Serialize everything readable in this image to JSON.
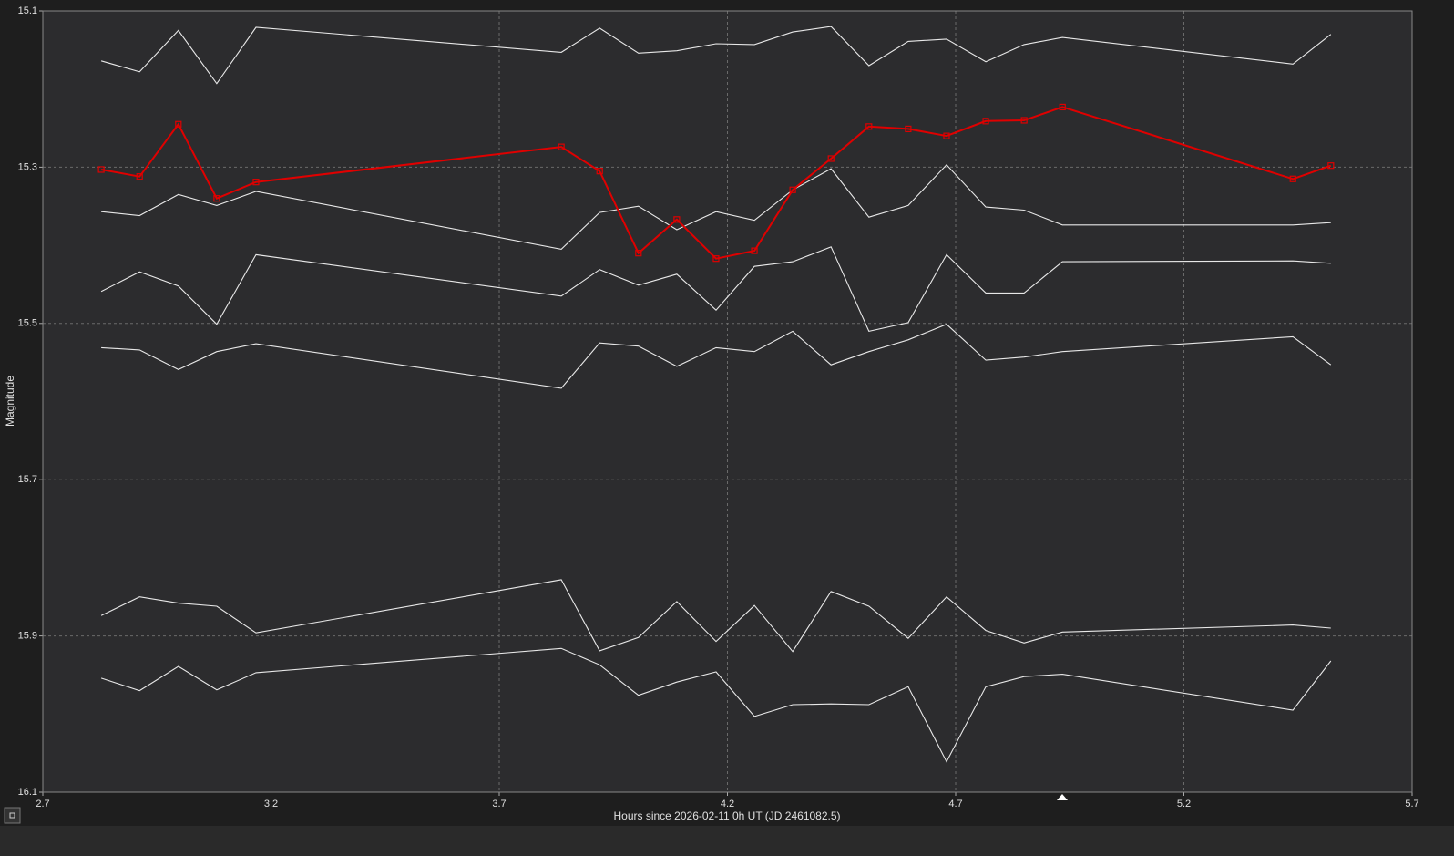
{
  "chart_data": {
    "type": "line",
    "xlabel": "Hours since 2026-02-11 0h UT (JD 2461082.5)",
    "ylabel": "Magnitude",
    "x": [
      2.828,
      2.912,
      2.997,
      3.081,
      3.167,
      3.836,
      3.92,
      4.005,
      4.089,
      4.175,
      4.259,
      4.343,
      4.427,
      4.51,
      4.596,
      4.68,
      4.766,
      4.85,
      4.934,
      5.439,
      5.522
    ],
    "xlim": [
      2.7,
      5.7
    ],
    "xticks": [
      2.7,
      3.2,
      3.7,
      4.2,
      4.7,
      5.2,
      5.7
    ],
    "ylim": [
      15.1,
      16.1
    ],
    "yticks": [
      15.1,
      15.3,
      15.5,
      15.7,
      15.9,
      16.1
    ],
    "y_inverted": true,
    "grid": true,
    "series": [
      {
        "color": "#e8e8e8",
        "values": [
          15.164,
          15.178,
          15.125,
          15.193,
          15.121,
          15.153,
          15.122,
          15.154,
          15.151,
          15.142,
          15.143,
          15.127,
          15.12,
          15.17,
          15.139,
          15.136,
          15.165,
          15.143,
          15.134,
          15.168,
          15.13
        ]
      },
      {
        "color": "#e8e8e8",
        "values": [
          15.357,
          15.362,
          15.335,
          15.349,
          15.331,
          15.405,
          15.358,
          15.35,
          15.38,
          15.357,
          15.368,
          15.329,
          15.302,
          15.364,
          15.349,
          15.297,
          15.351,
          15.355,
          15.374,
          15.374,
          15.371
        ]
      },
      {
        "color": "#e8e8e8",
        "values": [
          15.459,
          15.434,
          15.452,
          15.501,
          15.412,
          15.465,
          15.431,
          15.451,
          15.437,
          15.483,
          15.427,
          15.421,
          15.402,
          15.51,
          15.499,
          15.412,
          15.461,
          15.461,
          15.421,
          15.42,
          15.423
        ]
      },
      {
        "color": "#e8e8e8",
        "values": [
          15.531,
          15.534,
          15.559,
          15.536,
          15.526,
          15.583,
          15.525,
          15.529,
          15.555,
          15.531,
          15.536,
          15.51,
          15.553,
          15.536,
          15.521,
          15.501,
          15.547,
          15.543,
          15.536,
          15.517,
          15.553
        ]
      },
      {
        "color": "#e8e8e8",
        "values": [
          15.874,
          15.85,
          15.858,
          15.862,
          15.896,
          15.828,
          15.919,
          15.902,
          15.856,
          15.907,
          15.861,
          15.92,
          15.843,
          15.862,
          15.903,
          15.85,
          15.893,
          15.909,
          15.895,
          15.886,
          15.89
        ]
      },
      {
        "color": "#e8e8e8",
        "values": [
          15.954,
          15.97,
          15.939,
          15.969,
          15.947,
          15.916,
          15.937,
          15.976,
          15.959,
          15.946,
          16.003,
          15.988,
          15.987,
          15.988,
          15.965,
          16.061,
          15.965,
          15.952,
          15.949,
          15.995,
          15.932
        ]
      },
      {
        "color": "#e00000",
        "marker": "square",
        "values": [
          15.303,
          15.312,
          15.245,
          15.34,
          15.319,
          15.274,
          15.305,
          15.41,
          15.367,
          15.417,
          15.407,
          15.329,
          15.289,
          15.248,
          15.251,
          15.26,
          15.241,
          15.24,
          15.223,
          15.315,
          15.298
        ]
      }
    ]
  }
}
